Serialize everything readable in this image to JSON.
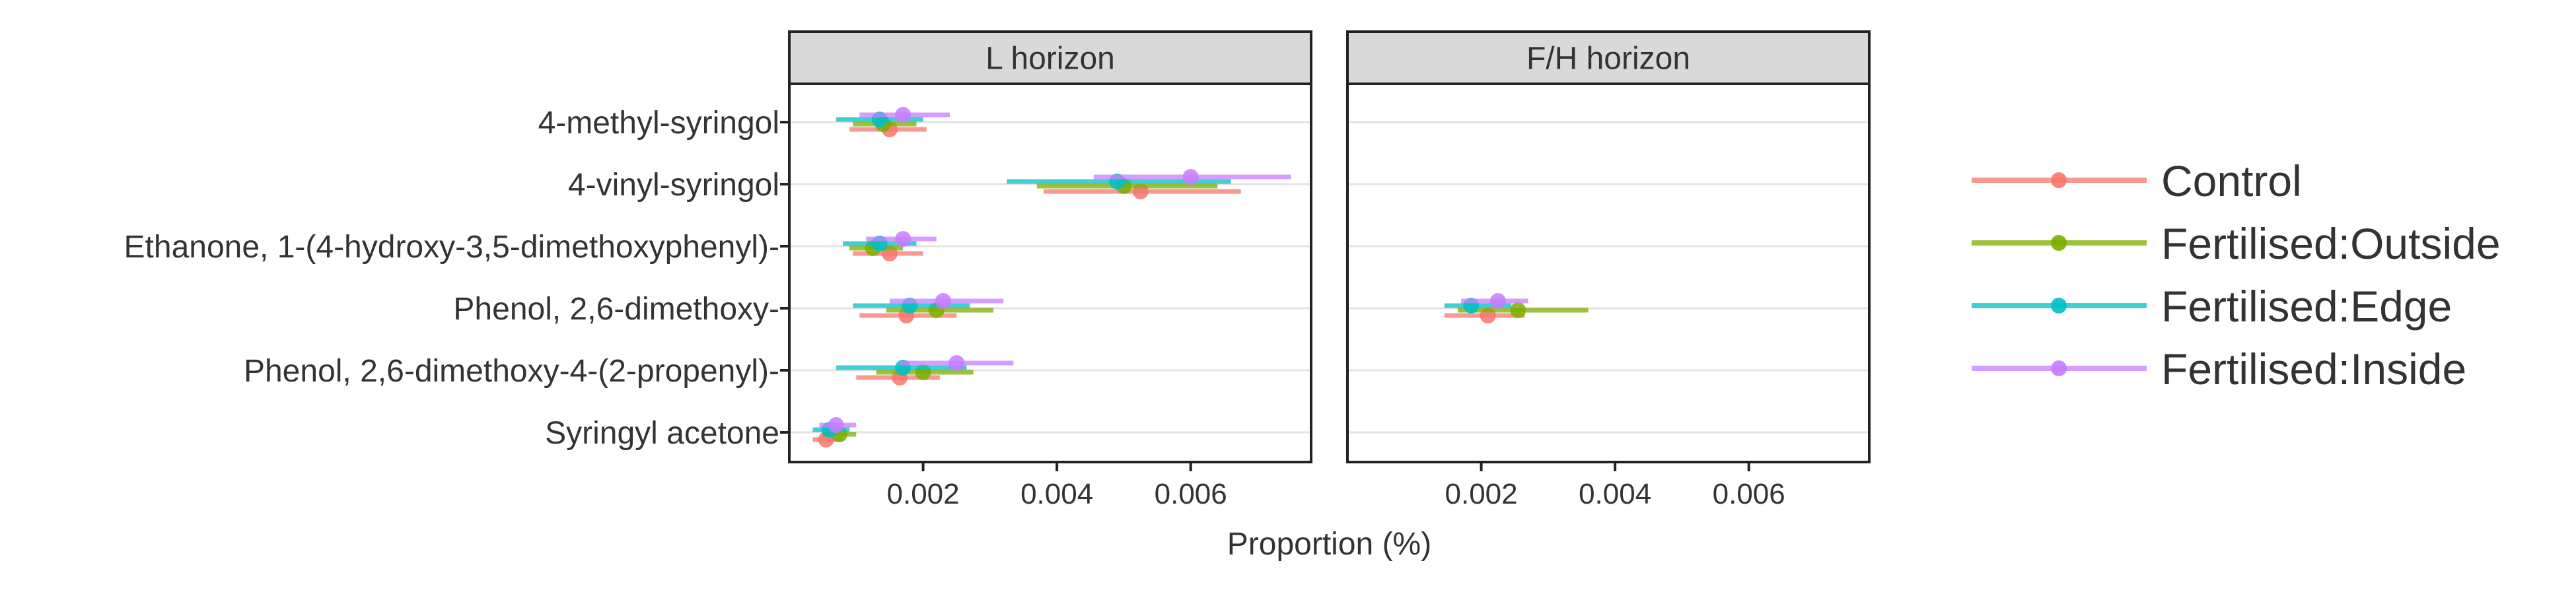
{
  "chart_data": {
    "type": "scatter",
    "subtype": "point-range (dot with horizontal interval)",
    "xlabel": "Proportion (%)",
    "ylabel": "",
    "xlim": [
      0.0,
      0.0078
    ],
    "x_ticks": [
      0.002,
      0.004,
      0.006
    ],
    "x_tick_labels": [
      "0.002",
      "0.004",
      "0.006"
    ],
    "grid": "horizontal lines at each category",
    "legend_position": "right",
    "categories": [
      "4-methyl-syringol",
      "4-vinyl-syringol",
      "Ethanone, 1-(4-hydroxy-3,5-dimethoxyphenyl)-",
      "Phenol, 2,6-dimethoxy-",
      "Phenol, 2,6-dimethoxy-4-(2-propenyl)-",
      "Syringyl acetone"
    ],
    "panels": [
      {
        "title": "L horizon",
        "series": [
          {
            "name": "Control",
            "color": "#F8766D",
            "points": [
              {
                "category": "4-methyl-syringol",
                "x": 0.0015,
                "low": 0.0009,
                "high": 0.00205
              },
              {
                "category": "4-vinyl-syringol",
                "x": 0.00525,
                "low": 0.0038,
                "high": 0.00675
              },
              {
                "category": "Ethanone, 1-(4-hydroxy-3,5-dimethoxyphenyl)-",
                "x": 0.0015,
                "low": 0.00095,
                "high": 0.002
              },
              {
                "category": "Phenol, 2,6-dimethoxy-",
                "x": 0.00175,
                "low": 0.00105,
                "high": 0.0025
              },
              {
                "category": "Phenol, 2,6-dimethoxy-4-(2-propenyl)-",
                "x": 0.00165,
                "low": 0.001,
                "high": 0.00225
              },
              {
                "category": "Syringyl acetone",
                "x": 0.00055,
                "low": 0.00035,
                "high": 0.0008
              }
            ]
          },
          {
            "name": "Fertilised:Outside",
            "color": "#7CAE00",
            "points": [
              {
                "category": "4-methyl-syringol",
                "x": 0.0014,
                "low": 0.00095,
                "high": 0.0019
              },
              {
                "category": "4-vinyl-syringol",
                "x": 0.005,
                "low": 0.0037,
                "high": 0.0064
              },
              {
                "category": "Ethanone, 1-(4-hydroxy-3,5-dimethoxyphenyl)-",
                "x": 0.00125,
                "low": 0.0009,
                "high": 0.0017
              },
              {
                "category": "Phenol, 2,6-dimethoxy-",
                "x": 0.0022,
                "low": 0.00145,
                "high": 0.00305
              },
              {
                "category": "Phenol, 2,6-dimethoxy-4-(2-propenyl)-",
                "x": 0.002,
                "low": 0.0013,
                "high": 0.00275
              },
              {
                "category": "Syringyl acetone",
                "x": 0.00075,
                "low": 0.0005,
                "high": 0.001
              }
            ]
          },
          {
            "name": "Fertilised:Edge",
            "color": "#00BFC4",
            "points": [
              {
                "category": "4-methyl-syringol",
                "x": 0.00135,
                "low": 0.0007,
                "high": 0.002
              },
              {
                "category": "4-vinyl-syringol",
                "x": 0.0049,
                "low": 0.00325,
                "high": 0.0066
              },
              {
                "category": "Ethanone, 1-(4-hydroxy-3,5-dimethoxyphenyl)-",
                "x": 0.00135,
                "low": 0.0008,
                "high": 0.0019
              },
              {
                "category": "Phenol, 2,6-dimethoxy-",
                "x": 0.0018,
                "low": 0.00095,
                "high": 0.0027
              },
              {
                "category": "Phenol, 2,6-dimethoxy-4-(2-propenyl)-",
                "x": 0.0017,
                "low": 0.0007,
                "high": 0.00265
              },
              {
                "category": "Syringyl acetone",
                "x": 0.0006,
                "low": 0.00035,
                "high": 0.0009
              }
            ]
          },
          {
            "name": "Fertilised:Inside",
            "color": "#C77CFF",
            "points": [
              {
                "category": "4-methyl-syringol",
                "x": 0.0017,
                "low": 0.00105,
                "high": 0.0024
              },
              {
                "category": "4-vinyl-syringol",
                "x": 0.006,
                "low": 0.00455,
                "high": 0.0075
              },
              {
                "category": "Ethanone, 1-(4-hydroxy-3,5-dimethoxyphenyl)-",
                "x": 0.0017,
                "low": 0.00115,
                "high": 0.0022
              },
              {
                "category": "Phenol, 2,6-dimethoxy-",
                "x": 0.0023,
                "low": 0.0015,
                "high": 0.0032
              },
              {
                "category": "Phenol, 2,6-dimethoxy-4-(2-propenyl)-",
                "x": 0.0025,
                "low": 0.00165,
                "high": 0.00335
              },
              {
                "category": "Syringyl acetone",
                "x": 0.0007,
                "low": 0.00045,
                "high": 0.001
              }
            ]
          }
        ]
      },
      {
        "title": "F/H horizon",
        "series": [
          {
            "name": "Control",
            "color": "#F8766D",
            "points": [
              {
                "category": "Phenol, 2,6-dimethoxy-",
                "x": 0.0021,
                "low": 0.00145,
                "high": 0.00265
              }
            ]
          },
          {
            "name": "Fertilised:Outside",
            "color": "#7CAE00",
            "points": [
              {
                "category": "Phenol, 2,6-dimethoxy-",
                "x": 0.00255,
                "low": 0.00165,
                "high": 0.0036
              }
            ]
          },
          {
            "name": "Fertilised:Edge",
            "color": "#00BFC4",
            "points": [
              {
                "category": "Phenol, 2,6-dimethoxy-",
                "x": 0.00185,
                "low": 0.00145,
                "high": 0.00245
              }
            ]
          },
          {
            "name": "Fertilised:Inside",
            "color": "#C77CFF",
            "points": [
              {
                "category": "Phenol, 2,6-dimethoxy-",
                "x": 0.00225,
                "low": 0.0017,
                "high": 0.0027
              }
            ]
          }
        ]
      }
    ],
    "legend": [
      "Control",
      "Fertilised:Outside",
      "Fertilised:Edge",
      "Fertilised:Inside"
    ]
  }
}
